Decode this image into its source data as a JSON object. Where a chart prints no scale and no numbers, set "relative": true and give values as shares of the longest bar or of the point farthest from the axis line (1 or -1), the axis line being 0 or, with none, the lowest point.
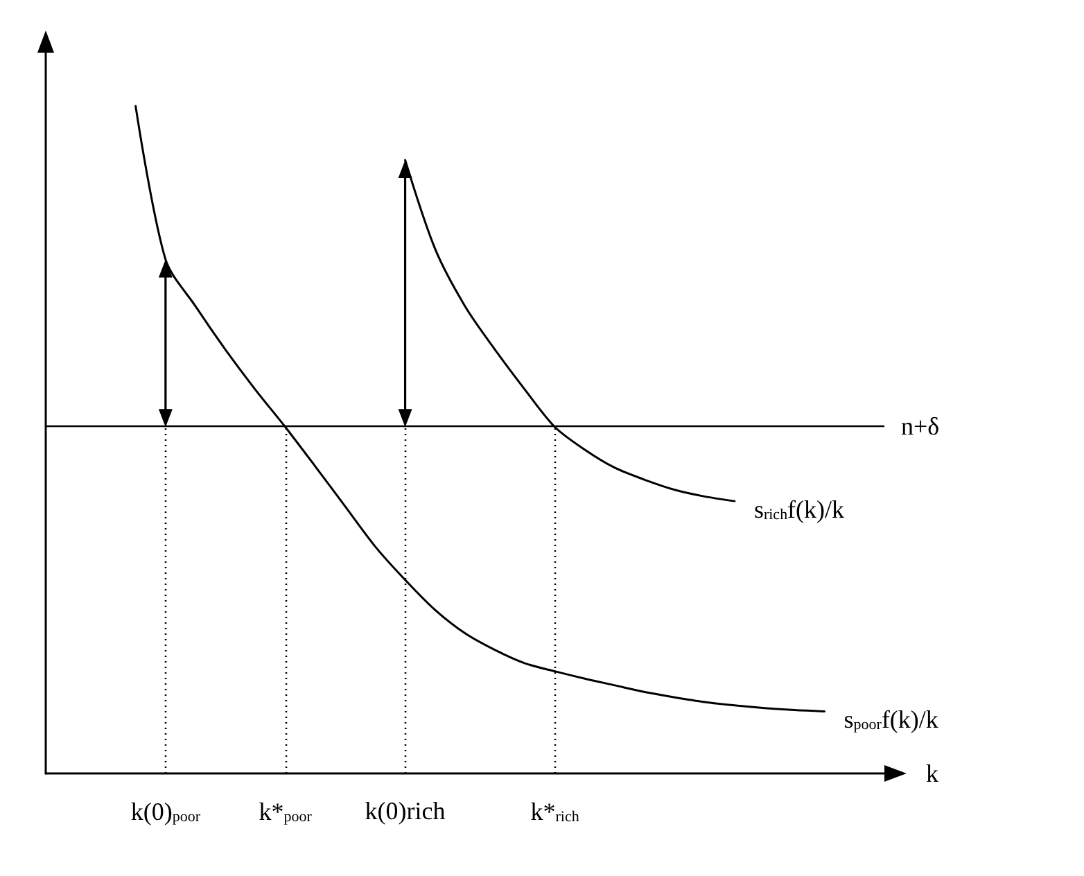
{
  "chart_data": {
    "type": "line",
    "relative": true,
    "xlabel": "k",
    "categories": [
      null,
      null,
      null,
      null,
      "k(0)$_{poor}$",
      null,
      null,
      null,
      "k*$_{poor}$",
      null,
      null,
      null,
      "k(0)rich",
      null,
      null,
      null,
      null,
      "k*$_{rich}$",
      null,
      null,
      null,
      null,
      null,
      null,
      null,
      null,
      null,
      null,
      null
    ],
    "series": [
      {
        "name": "s$_{poor}$f(k)/k",
        "color": "#000000",
        "values": [
          null,
          null,
          null,
          1.0,
          0.77,
          0.7,
          0.635,
          0.575,
          0.519,
          0.46,
          0.4,
          0.34,
          0.29,
          0.245,
          0.21,
          0.185,
          0.165,
          0.153,
          0.142,
          0.132,
          0.122,
          0.114,
          0.107,
          0.102,
          0.098,
          0.095,
          0.093,
          null,
          null
        ]
      },
      {
        "name": "s$_{rich}$f(k)/k",
        "color": "#000000",
        "values": [
          null,
          null,
          null,
          null,
          null,
          null,
          null,
          null,
          null,
          null,
          null,
          null,
          0.919,
          0.786,
          0.7,
          0.635,
          0.575,
          0.519,
          0.485,
          0.458,
          0.44,
          0.425,
          0.415,
          0.408,
          null,
          null,
          null,
          null,
          null
        ]
      }
    ],
    "ref_lines": [
      {
        "axis": "y",
        "value": 0.519,
        "label": "n+δ",
        "color": "#000000",
        "line_style": "solid"
      },
      {
        "axis": "x",
        "value": "k(0)$_{poor}$",
        "color": "#000000",
        "line_style": "dotted"
      },
      {
        "axis": "x",
        "value": "k*$_{poor}$",
        "color": "#000000",
        "line_style": "dotted"
      },
      {
        "axis": "x",
        "value": "k(0)rich",
        "color": "#000000",
        "line_style": "dotted"
      },
      {
        "axis": "x",
        "value": "k*$_{rich}$",
        "color": "#000000",
        "line_style": "dotted"
      }
    ],
    "tick_labels": "x",
    "grid": false,
    "marker": "none",
    "line_style": "solid"
  }
}
